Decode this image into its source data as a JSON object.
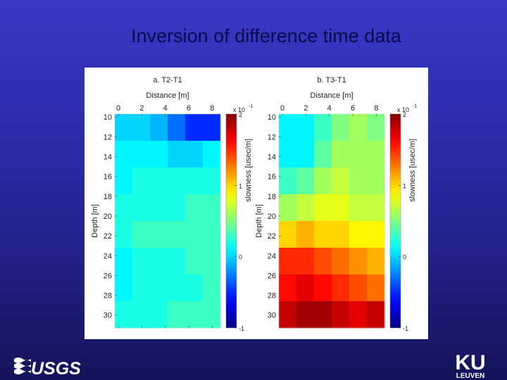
{
  "slide_title": "Inversion of difference time data",
  "logos": {
    "left": "USGS",
    "right_top": "KU",
    "right_bottom": "LEUVEN"
  },
  "chart_data": [
    {
      "type": "heatmap",
      "title": "a. T2-T1",
      "xlabel": "Distance [m]",
      "ylabel": "Depth [m]",
      "colormap": "jet",
      "x": [
        0.45,
        1.95,
        3.45,
        4.95,
        6.45,
        7.95
      ],
      "y": [
        11.05,
        13.75,
        16.45,
        19.15,
        21.85,
        24.55,
        27.25,
        29.95
      ],
      "xlim": [
        -0.3,
        8.7
      ],
      "ylim": [
        9.7,
        31.3
      ],
      "xticks": [
        0,
        2,
        4,
        6,
        8
      ],
      "yticks": [
        10,
        12,
        14,
        16,
        18,
        20,
        22,
        24,
        26,
        28,
        30
      ],
      "values": [
        [
          0.0,
          0.0,
          -0.1,
          -0.3,
          -0.5,
          -0.5
        ],
        [
          0.1,
          0.1,
          0.1,
          0.0,
          0.0,
          0.1
        ],
        [
          0.1,
          0.2,
          0.2,
          0.2,
          0.2,
          0.2
        ],
        [
          0.2,
          0.2,
          0.2,
          0.2,
          0.3,
          0.3
        ],
        [
          0.2,
          0.3,
          0.3,
          0.3,
          0.3,
          0.3
        ],
        [
          0.1,
          0.2,
          0.2,
          0.2,
          0.3,
          0.3
        ],
        [
          0.1,
          0.2,
          0.2,
          0.2,
          0.2,
          0.3
        ],
        [
          0.2,
          0.2,
          0.2,
          0.3,
          0.3,
          0.3
        ]
      ],
      "colorbar": {
        "label": "slowness  [usec/m]",
        "clim": [
          -1,
          2
        ],
        "ticks": [
          -1,
          0,
          1,
          2
        ],
        "scale": "x 10",
        "exponent": "-1"
      }
    },
    {
      "type": "heatmap",
      "title": "b. T3-T1",
      "xlabel": "Distance [m]",
      "ylabel": "Depth  [m]",
      "colormap": "jet",
      "x": [
        0.45,
        1.95,
        3.45,
        4.95,
        6.45,
        7.95
      ],
      "y": [
        11.05,
        13.75,
        16.45,
        19.15,
        21.85,
        24.55,
        27.25,
        29.95
      ],
      "xlim": [
        -0.3,
        8.7
      ],
      "ylim": [
        9.7,
        31.3
      ],
      "xticks": [
        0,
        2,
        4,
        6,
        8
      ],
      "yticks": [
        10,
        12,
        14,
        16,
        18,
        20,
        22,
        24,
        26,
        28,
        30
      ],
      "values": [
        [
          0.1,
          0.1,
          0.3,
          0.5,
          0.6,
          0.5
        ],
        [
          0.1,
          0.1,
          0.4,
          0.6,
          0.6,
          0.6
        ],
        [
          0.3,
          0.4,
          0.6,
          0.7,
          0.6,
          0.6
        ],
        [
          0.6,
          0.7,
          0.8,
          0.8,
          0.7,
          0.7
        ],
        [
          1.0,
          1.1,
          1.0,
          1.0,
          0.9,
          0.9
        ],
        [
          1.5,
          1.5,
          1.4,
          1.3,
          1.2,
          1.1
        ],
        [
          1.6,
          1.7,
          1.6,
          1.5,
          1.4,
          1.3
        ],
        [
          1.8,
          1.9,
          1.9,
          1.8,
          1.7,
          1.8
        ]
      ],
      "colorbar": {
        "label": "slowness  [usec/m]",
        "clim": [
          -1,
          2
        ],
        "ticks": [
          -1,
          0,
          1,
          2
        ],
        "scale": "x 10",
        "exponent": "-1"
      }
    }
  ]
}
